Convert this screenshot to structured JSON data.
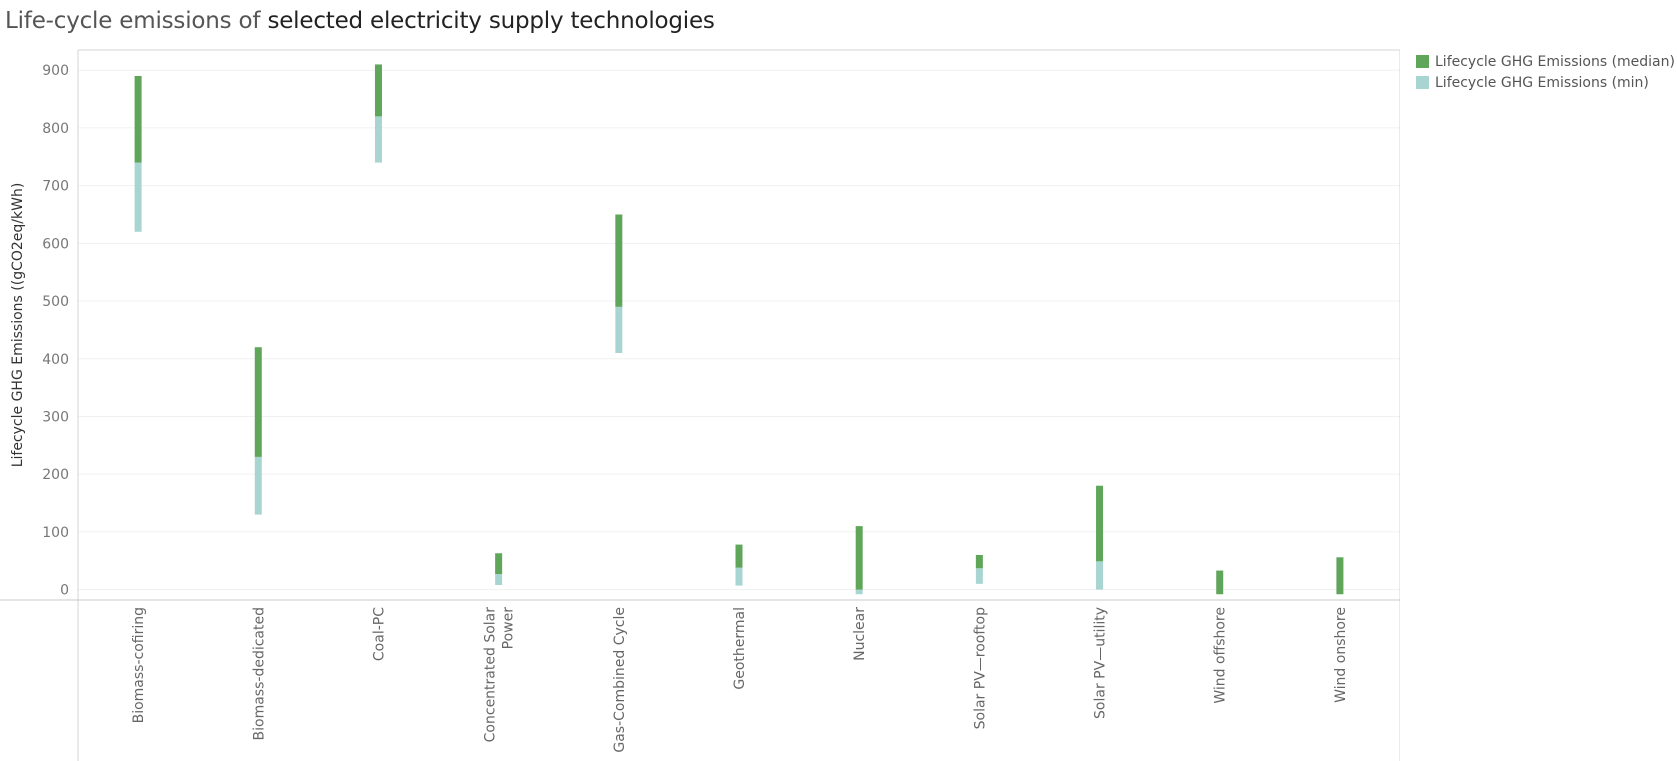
{
  "title": {
    "prefix": "Life-cycle emissions of",
    "rest": " selected electricity supply technologies"
  },
  "legend": [
    {
      "label": "Lifecycle GHG Emissions (median)",
      "color": "#5fa55a"
    },
    {
      "label": "Lifecycle GHG Emissions (min)",
      "color": "#a8d5d1"
    }
  ],
  "chart_data": {
    "type": "bar",
    "subtype": "floating-range",
    "ylabel": "Lifecycle GHG Emissions ((gCO2eq/kWh)",
    "xlabel": "",
    "ylim": [
      -18,
      935
    ],
    "yticks": [
      0,
      100,
      200,
      300,
      400,
      500,
      600,
      700,
      800,
      900
    ],
    "categories": [
      [
        "Biomass-cofiring"
      ],
      [
        "Biomass-dedicated"
      ],
      [
        "Coal-PC"
      ],
      [
        "Concentrated Solar",
        "Power"
      ],
      [
        "Gas-Combined Cycle"
      ],
      [
        "Geothermal"
      ],
      [
        "Nuclear"
      ],
      [
        "Solar PV—rooftop"
      ],
      [
        "Solar PV—utility"
      ],
      [
        "Wind offshore"
      ],
      [
        "Wind onshore"
      ]
    ],
    "series": [
      {
        "name": "Lifecycle GHG Emissions (min)",
        "color": "#a8d5d1",
        "low": [
          620,
          130,
          740,
          8,
          410,
          7,
          -8,
          10,
          0,
          -8,
          -8
        ],
        "high": [
          740,
          230,
          820,
          27,
          490,
          38,
          0,
          37,
          49,
          -8,
          -8
        ]
      },
      {
        "name": "Lifecycle GHG Emissions (median)",
        "color": "#5fa55a",
        "low": [
          740,
          230,
          820,
          27,
          490,
          38,
          0,
          37,
          49,
          -8,
          -8
        ],
        "high": [
          890,
          420,
          910,
          63,
          650,
          78,
          110,
          60,
          180,
          33,
          56
        ]
      }
    ]
  }
}
